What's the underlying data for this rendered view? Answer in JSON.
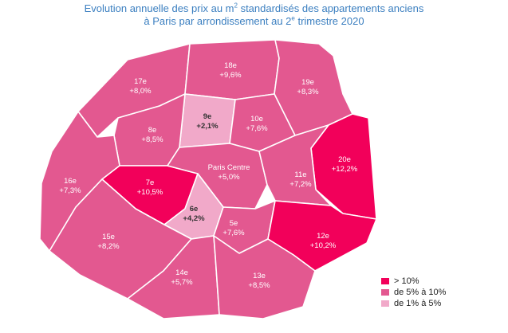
{
  "title": {
    "line1_pre": "Evolution annuelle des prix au m",
    "line1_sup": "2",
    "line1_post": " standardisés des appartements anciens",
    "line2_pre": "à Paris par arrondissement au 2",
    "line2_sup": "e",
    "line2_post": " trimestre 2020"
  },
  "colors": {
    "high": "#f2005a",
    "mid": "#e35890",
    "low": "#f1a9c9"
  },
  "districts": [
    {
      "id": "17e",
      "name": "17e",
      "value": "+8,0%",
      "class": "mid"
    },
    {
      "id": "18e",
      "name": "18e",
      "value": "+9,6%",
      "class": "mid"
    },
    {
      "id": "19e",
      "name": "19e",
      "value": "+8,3%",
      "class": "mid"
    },
    {
      "id": "9e",
      "name": "9e",
      "value": "+2,1%",
      "class": "low"
    },
    {
      "id": "10e",
      "name": "10e",
      "value": "+7,6%",
      "class": "mid"
    },
    {
      "id": "8e",
      "name": "8e",
      "value": "+8,5%",
      "class": "mid"
    },
    {
      "id": "20e",
      "name": "20e",
      "value": "+12,2%",
      "class": "high"
    },
    {
      "id": "16e",
      "name": "16e",
      "value": "+7,3%",
      "class": "mid"
    },
    {
      "id": "7e",
      "name": "7e",
      "value": "+10,5%",
      "class": "high"
    },
    {
      "id": "centre",
      "name": "Paris Centre",
      "value": "+5,0%",
      "class": "mid"
    },
    {
      "id": "11e",
      "name": "11e",
      "value": "+7,2%",
      "class": "mid"
    },
    {
      "id": "6e",
      "name": "6e",
      "value": "+4,2%",
      "class": "low"
    },
    {
      "id": "5e",
      "name": "5e",
      "value": "+7,6%",
      "class": "mid"
    },
    {
      "id": "12e",
      "name": "12e",
      "value": "+10,2%",
      "class": "high"
    },
    {
      "id": "15e",
      "name": "15e",
      "value": "+8,2%",
      "class": "mid"
    },
    {
      "id": "14e",
      "name": "14e",
      "value": "+5,7%",
      "class": "mid"
    },
    {
      "id": "13e",
      "name": "13e",
      "value": "+8,5%",
      "class": "mid"
    }
  ],
  "legend": [
    {
      "label": "> 10%",
      "class": "high"
    },
    {
      "label": "de 5% à 10%",
      "class": "mid"
    },
    {
      "label": "de 1% à 5%",
      "class": "low"
    }
  ]
}
